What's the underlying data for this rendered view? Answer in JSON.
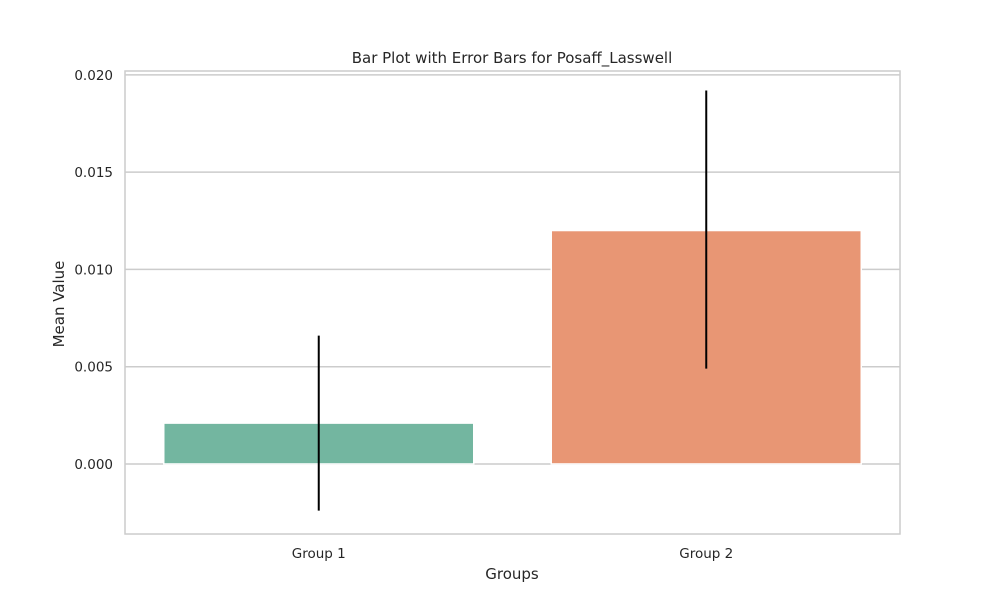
{
  "chart_data": {
    "type": "bar",
    "title": "Bar Plot with Error Bars for Posaff_Lasswell",
    "xlabel": "Groups",
    "ylabel": "Mean Value",
    "categories": [
      "Group 1",
      "Group 2"
    ],
    "values": [
      0.0021,
      0.012
    ],
    "error_low": [
      -0.0024,
      0.0049
    ],
    "error_high": [
      0.0066,
      0.0192
    ],
    "ylim": [
      -0.0036,
      0.0202
    ],
    "yticks": [
      0.0,
      0.005,
      0.01,
      0.015,
      0.02
    ],
    "ytick_labels": [
      "0.000",
      "0.005",
      "0.010",
      "0.015",
      "0.020"
    ],
    "grid": true,
    "colors": [
      "#73b6a0",
      "#e89674"
    ],
    "error_color": "#000000",
    "grid_color": "#cccccc",
    "frame_color": "#cccccc"
  }
}
